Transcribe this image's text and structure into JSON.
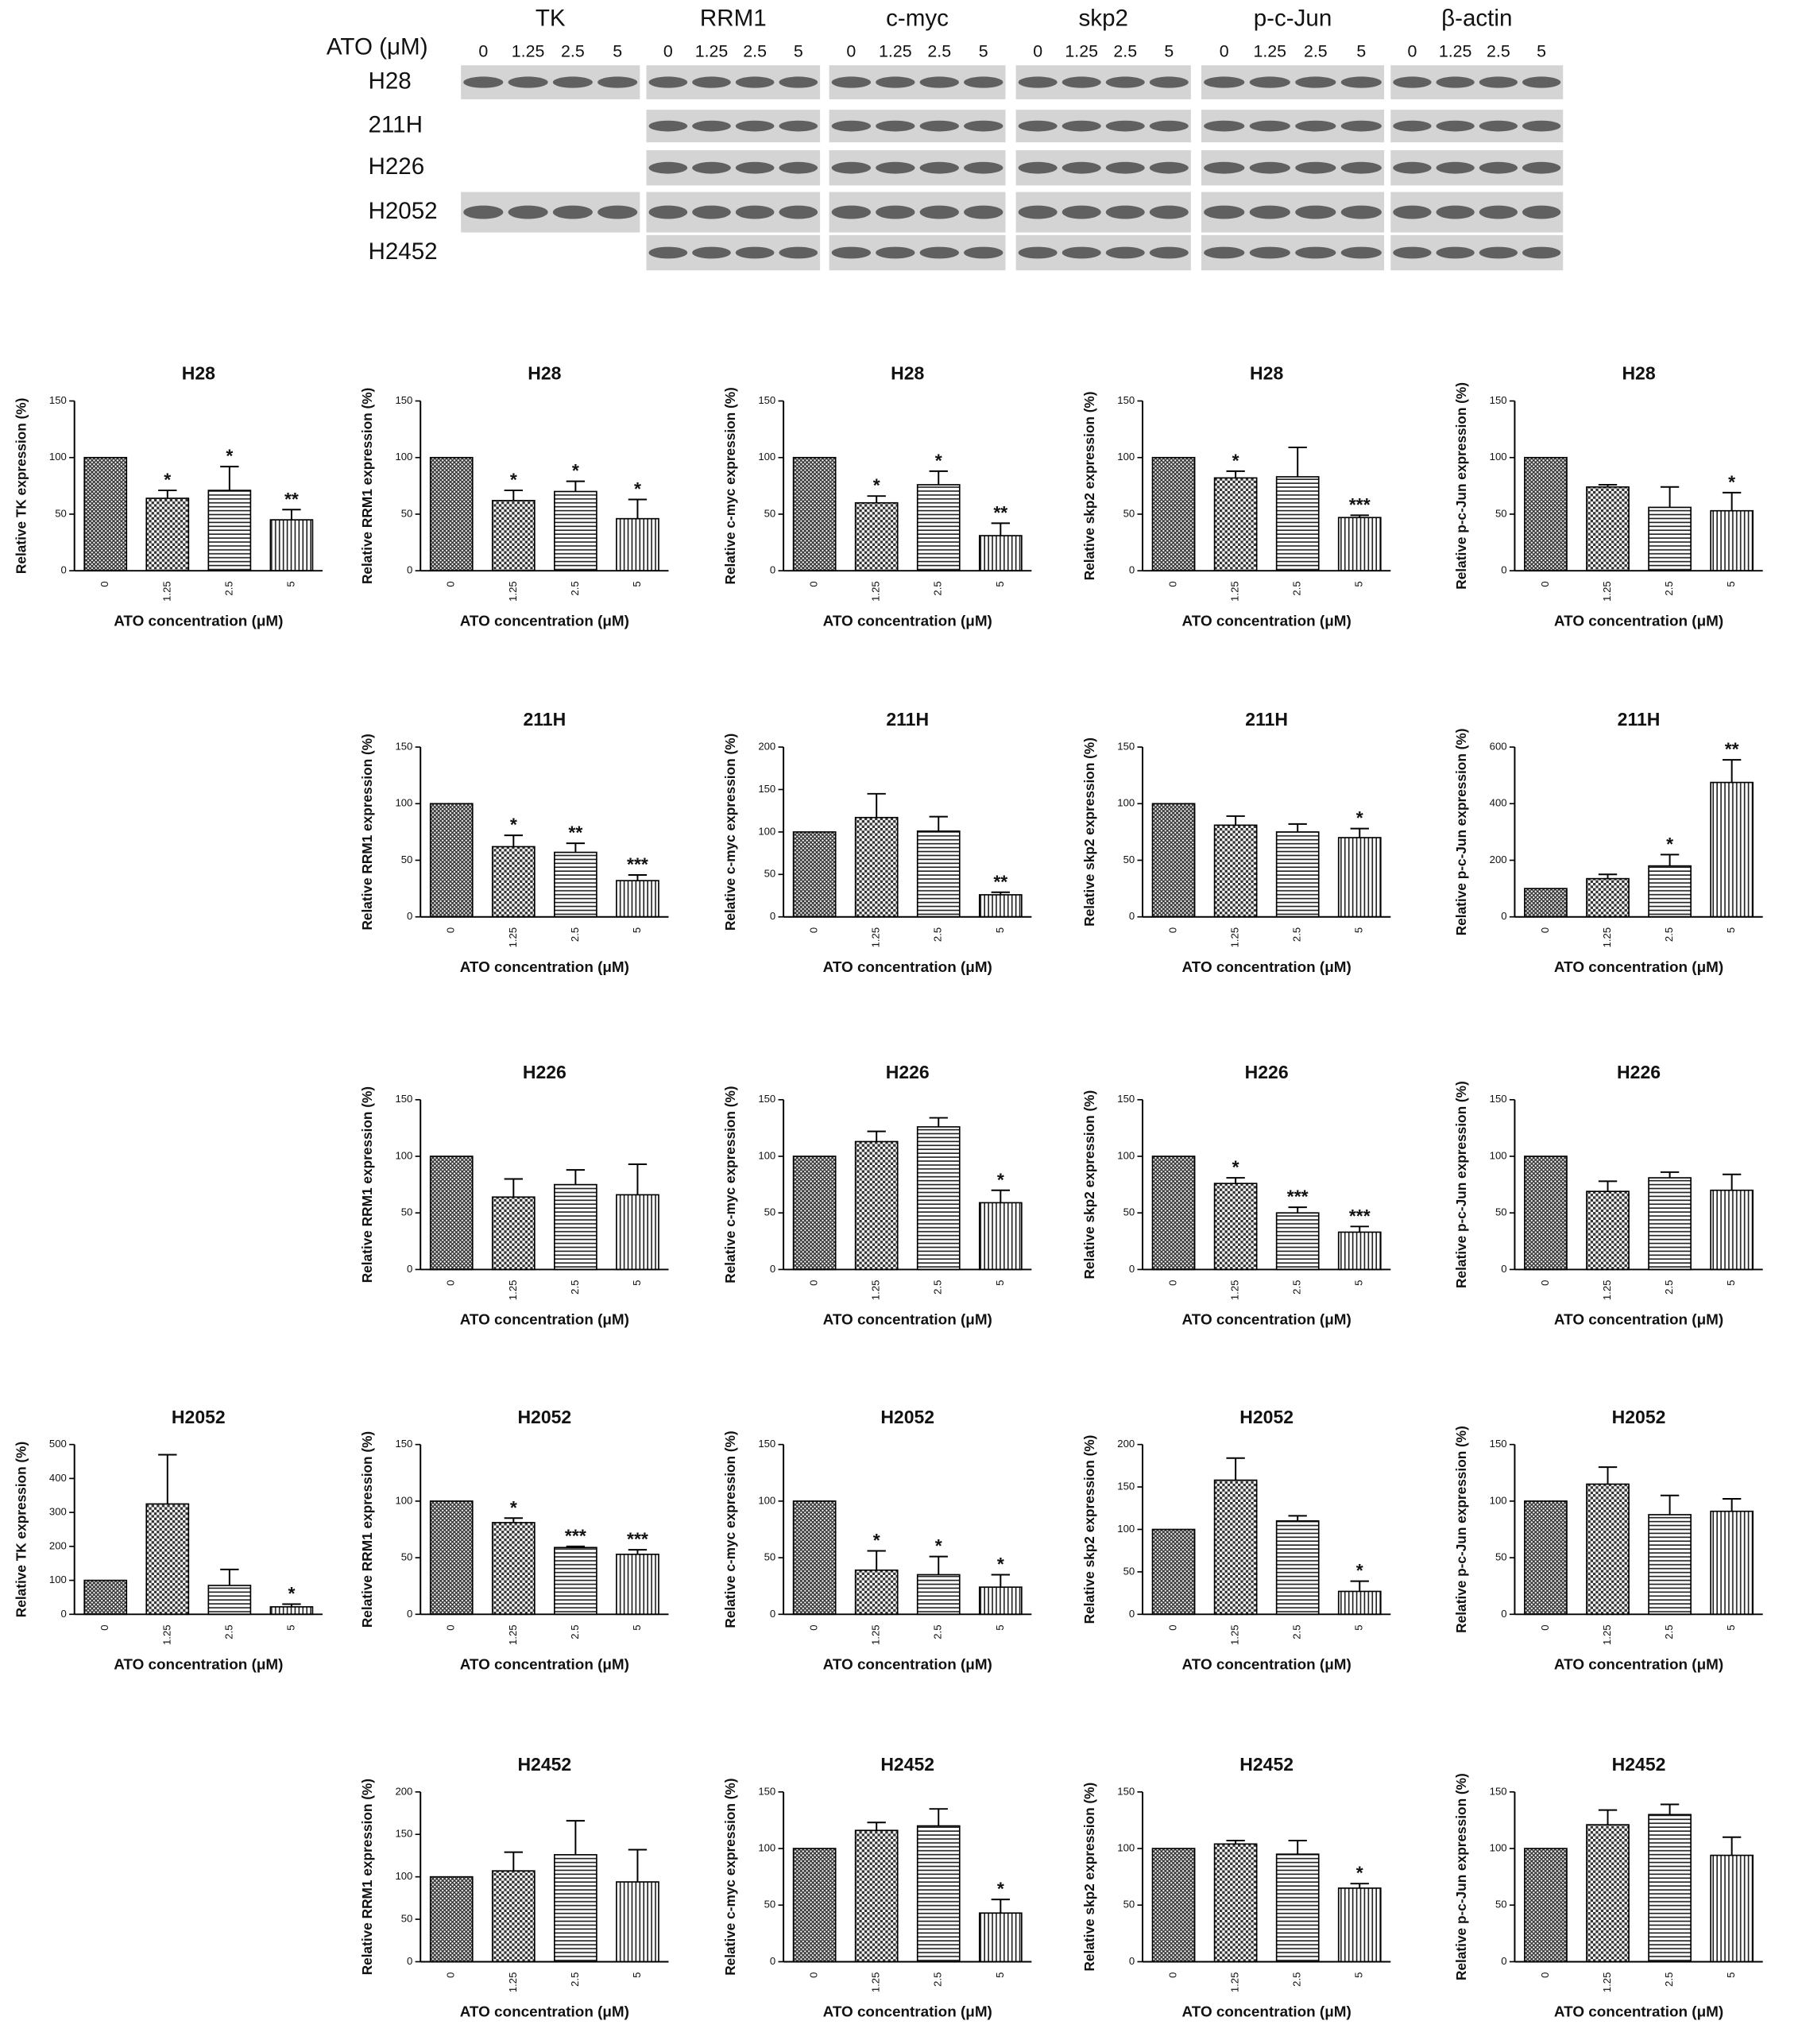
{
  "blot": {
    "label": "ATO (μM)",
    "proteins": [
      "TK",
      "RRM1",
      "c-myc",
      "skp2",
      "p-c-Jun",
      "β-actin"
    ],
    "doses": [
      "0",
      "1.25",
      "2.5",
      "5"
    ],
    "cell_lines": [
      "H28",
      "211H",
      "H226",
      "H2052",
      "H2452"
    ]
  },
  "chart_data": [
    {
      "type": "bar",
      "title": "H28",
      "ylabel": "Relative TK expression (%)",
      "xlabel": "ATO concentration (μM)",
      "categories": [
        "0",
        "1.25",
        "2.5",
        "5"
      ],
      "values": [
        100,
        64,
        71,
        45
      ],
      "errors": [
        null,
        7,
        21,
        9
      ],
      "annotations": [
        null,
        "*",
        "*",
        "**"
      ],
      "ylim": [
        0,
        150
      ],
      "yticks": [
        0,
        50,
        100,
        150
      ],
      "patterns": [
        "crosshatch",
        "checker",
        "horizontal",
        "vertical"
      ]
    },
    {
      "type": "bar",
      "title": "H28",
      "ylabel": "Relative RRM1 expression (%)",
      "xlabel": "ATO concentration (μM)",
      "categories": [
        "0",
        "1.25",
        "2.5",
        "5"
      ],
      "values": [
        100,
        62,
        70,
        46
      ],
      "errors": [
        null,
        9,
        9,
        17
      ],
      "annotations": [
        null,
        "*",
        "*",
        "*"
      ],
      "ylim": [
        0,
        150
      ],
      "yticks": [
        0,
        50,
        100,
        150
      ],
      "patterns": [
        "crosshatch",
        "checker",
        "horizontal",
        "vertical"
      ]
    },
    {
      "type": "bar",
      "title": "H28",
      "ylabel": "Relative c-myc expression (%)",
      "xlabel": "ATO concentration (μM)",
      "categories": [
        "0",
        "1.25",
        "2.5",
        "5"
      ],
      "values": [
        100,
        60,
        76,
        31
      ],
      "errors": [
        null,
        6,
        12,
        11
      ],
      "annotations": [
        null,
        "*",
        "*",
        "**"
      ],
      "ylim": [
        0,
        150
      ],
      "yticks": [
        0,
        50,
        100,
        150
      ],
      "patterns": [
        "crosshatch",
        "checker",
        "horizontal",
        "vertical"
      ]
    },
    {
      "type": "bar",
      "title": "H28",
      "ylabel": "Relative skp2 expression (%)",
      "xlabel": "ATO concentration (μM)",
      "categories": [
        "0",
        "1.25",
        "2.5",
        "5"
      ],
      "values": [
        100,
        82,
        83,
        47
      ],
      "errors": [
        null,
        6,
        26,
        2
      ],
      "annotations": [
        null,
        "*",
        null,
        "***"
      ],
      "ylim": [
        0,
        150
      ],
      "yticks": [
        0,
        50,
        100,
        150
      ],
      "patterns": [
        "crosshatch",
        "checker",
        "horizontal",
        "vertical"
      ]
    },
    {
      "type": "bar",
      "title": "H28",
      "ylabel": "Relative p-c-Jun expression (%)",
      "xlabel": "ATO concentration (μM)",
      "categories": [
        "0",
        "1.25",
        "2.5",
        "5"
      ],
      "values": [
        100,
        74,
        56,
        53
      ],
      "errors": [
        null,
        2,
        18,
        16
      ],
      "annotations": [
        null,
        null,
        null,
        "*"
      ],
      "ylim": [
        0,
        150
      ],
      "yticks": [
        0,
        50,
        100,
        150
      ],
      "patterns": [
        "crosshatch",
        "checker",
        "horizontal",
        "vertical"
      ]
    },
    {
      "type": "bar",
      "title": "211H",
      "ylabel": "Relative RRM1 expression (%)",
      "xlabel": "ATO concentration (μM)",
      "categories": [
        "0",
        "1.25",
        "2.5",
        "5"
      ],
      "values": [
        100,
        62,
        57,
        32
      ],
      "errors": [
        null,
        10,
        8,
        5
      ],
      "annotations": [
        null,
        "*",
        "**",
        "***"
      ],
      "ylim": [
        0,
        150
      ],
      "yticks": [
        0,
        50,
        100,
        150
      ],
      "patterns": [
        "crosshatch",
        "checker",
        "horizontal",
        "vertical"
      ]
    },
    {
      "type": "bar",
      "title": "211H",
      "ylabel": "Relative c-myc expression (%)",
      "xlabel": "ATO concentration (μM)",
      "categories": [
        "0",
        "1.25",
        "2.5",
        "5"
      ],
      "values": [
        100,
        117,
        101,
        26
      ],
      "errors": [
        null,
        28,
        17,
        3
      ],
      "annotations": [
        null,
        null,
        null,
        "**"
      ],
      "ylim": [
        0,
        200
      ],
      "yticks": [
        0,
        50,
        100,
        150,
        200
      ],
      "patterns": [
        "crosshatch",
        "checker",
        "horizontal",
        "vertical"
      ]
    },
    {
      "type": "bar",
      "title": "211H",
      "ylabel": "Relative skp2 expression (%)",
      "xlabel": "ATO concentration (μM)",
      "categories": [
        "0",
        "1.25",
        "2.5",
        "5"
      ],
      "values": [
        100,
        81,
        75,
        70
      ],
      "errors": [
        null,
        8,
        7,
        8
      ],
      "annotations": [
        null,
        null,
        null,
        "*"
      ],
      "ylim": [
        0,
        150
      ],
      "yticks": [
        0,
        50,
        100,
        150
      ],
      "patterns": [
        "crosshatch",
        "checker",
        "horizontal",
        "vertical"
      ]
    },
    {
      "type": "bar",
      "title": "211H",
      "ylabel": "Relative p-c-Jun expression (%)",
      "xlabel": "ATO concentration (μM)",
      "categories": [
        "0",
        "1.25",
        "2.5",
        "5"
      ],
      "values": [
        100,
        135,
        180,
        475
      ],
      "errors": [
        null,
        15,
        40,
        80
      ],
      "annotations": [
        null,
        null,
        "*",
        "**"
      ],
      "ylim": [
        0,
        600
      ],
      "yticks": [
        0,
        200,
        400,
        600
      ],
      "patterns": [
        "crosshatch",
        "checker",
        "horizontal",
        "vertical"
      ]
    },
    {
      "type": "bar",
      "title": "H226",
      "ylabel": "Relative RRM1 expression (%)",
      "xlabel": "ATO concentration (μM)",
      "categories": [
        "0",
        "1.25",
        "2.5",
        "5"
      ],
      "values": [
        100,
        64,
        75,
        66
      ],
      "errors": [
        null,
        16,
        13,
        27
      ],
      "annotations": [
        null,
        null,
        null,
        null
      ],
      "ylim": [
        0,
        150
      ],
      "yticks": [
        0,
        50,
        100,
        150
      ],
      "patterns": [
        "crosshatch",
        "checker",
        "horizontal",
        "vertical"
      ]
    },
    {
      "type": "bar",
      "title": "H226",
      "ylabel": "Relative c-myc expression (%)",
      "xlabel": "ATO concentration (μM)",
      "categories": [
        "0",
        "1.25",
        "2.5",
        "5"
      ],
      "values": [
        100,
        113,
        126,
        59
      ],
      "errors": [
        null,
        9,
        8,
        11
      ],
      "annotations": [
        null,
        null,
        null,
        "*"
      ],
      "ylim": [
        0,
        150
      ],
      "yticks": [
        0,
        50,
        100,
        150
      ],
      "patterns": [
        "crosshatch",
        "checker",
        "horizontal",
        "vertical"
      ]
    },
    {
      "type": "bar",
      "title": "H226",
      "ylabel": "Relative skp2 expression (%)",
      "xlabel": "ATO concentration (μM)",
      "categories": [
        "0",
        "1.25",
        "2.5",
        "5"
      ],
      "values": [
        100,
        76,
        50,
        33
      ],
      "errors": [
        null,
        5,
        5,
        5
      ],
      "annotations": [
        null,
        "*",
        "***",
        "***"
      ],
      "ylim": [
        0,
        150
      ],
      "yticks": [
        0,
        50,
        100,
        150
      ],
      "patterns": [
        "crosshatch",
        "checker",
        "horizontal",
        "vertical"
      ]
    },
    {
      "type": "bar",
      "title": "H226",
      "ylabel": "Relative p-c-Jun expression (%)",
      "xlabel": "ATO concentration (μM)",
      "categories": [
        "0",
        "1.25",
        "2.5",
        "5"
      ],
      "values": [
        100,
        69,
        81,
        70
      ],
      "errors": [
        null,
        9,
        5,
        14
      ],
      "annotations": [
        null,
        null,
        null,
        null
      ],
      "ylim": [
        0,
        150
      ],
      "yticks": [
        0,
        50,
        100,
        150
      ],
      "patterns": [
        "crosshatch",
        "checker",
        "horizontal",
        "vertical"
      ]
    },
    {
      "type": "bar",
      "title": "H2052",
      "ylabel": "Relative TK expression (%)",
      "xlabel": "ATO concentration (μM)",
      "categories": [
        "0",
        "1.25",
        "2.5",
        "5"
      ],
      "values": [
        100,
        325,
        85,
        22
      ],
      "errors": [
        null,
        145,
        47,
        8
      ],
      "annotations": [
        null,
        null,
        null,
        "*"
      ],
      "ylim": [
        0,
        500
      ],
      "yticks": [
        0,
        100,
        200,
        300,
        400,
        500
      ],
      "patterns": [
        "crosshatch",
        "checker",
        "horizontal",
        "vertical"
      ]
    },
    {
      "type": "bar",
      "title": "H2052",
      "ylabel": "Relative RRM1 expression (%)",
      "xlabel": "ATO concentration (μM)",
      "categories": [
        "0",
        "1.25",
        "2.5",
        "5"
      ],
      "values": [
        100,
        81,
        59,
        53
      ],
      "errors": [
        null,
        4,
        1,
        4
      ],
      "annotations": [
        null,
        "*",
        "***",
        "***"
      ],
      "ylim": [
        0,
        150
      ],
      "yticks": [
        0,
        50,
        100,
        150
      ],
      "patterns": [
        "crosshatch",
        "checker",
        "horizontal",
        "vertical"
      ]
    },
    {
      "type": "bar",
      "title": "H2052",
      "ylabel": "Relative c-myc expression (%)",
      "xlabel": "ATO concentration (μM)",
      "categories": [
        "0",
        "1.25",
        "2.5",
        "5"
      ],
      "values": [
        100,
        39,
        35,
        24
      ],
      "errors": [
        null,
        17,
        16,
        11
      ],
      "annotations": [
        null,
        "*",
        "*",
        "*"
      ],
      "ylim": [
        0,
        150
      ],
      "yticks": [
        0,
        50,
        100,
        150
      ],
      "patterns": [
        "crosshatch",
        "checker",
        "horizontal",
        "vertical"
      ]
    },
    {
      "type": "bar",
      "title": "H2052",
      "ylabel": "Relative skp2 expression (%)",
      "xlabel": "ATO concentration (μM)",
      "categories": [
        "0",
        "1.25",
        "2.5",
        "5"
      ],
      "values": [
        100,
        158,
        110,
        27
      ],
      "errors": [
        null,
        26,
        6,
        12
      ],
      "annotations": [
        null,
        null,
        null,
        "*"
      ],
      "ylim": [
        0,
        200
      ],
      "yticks": [
        0,
        50,
        100,
        150,
        200
      ],
      "patterns": [
        "crosshatch",
        "checker",
        "horizontal",
        "vertical"
      ]
    },
    {
      "type": "bar",
      "title": "H2052",
      "ylabel": "Relative p-c-Jun expression (%)",
      "xlabel": "ATO concentration (μM)",
      "categories": [
        "0",
        "1.25",
        "2.5",
        "5"
      ],
      "values": [
        100,
        115,
        88,
        91
      ],
      "errors": [
        null,
        15,
        17,
        11
      ],
      "annotations": [
        null,
        null,
        null,
        null
      ],
      "ylim": [
        0,
        150
      ],
      "yticks": [
        0,
        50,
        100,
        150
      ],
      "patterns": [
        "crosshatch",
        "checker",
        "horizontal",
        "vertical"
      ]
    },
    {
      "type": "bar",
      "title": "H2452",
      "ylabel": "Relative RRM1 expression (%)",
      "xlabel": "ATO concentration (μM)",
      "categories": [
        "0",
        "1.25",
        "2.5",
        "5"
      ],
      "values": [
        100,
        107,
        126,
        94
      ],
      "errors": [
        null,
        22,
        40,
        38
      ],
      "annotations": [
        null,
        null,
        null,
        null
      ],
      "ylim": [
        0,
        200
      ],
      "yticks": [
        0,
        50,
        100,
        150,
        200
      ],
      "patterns": [
        "crosshatch",
        "checker",
        "horizontal",
        "vertical"
      ]
    },
    {
      "type": "bar",
      "title": "H2452",
      "ylabel": "Relative c-myc expression (%)",
      "xlabel": "ATO concentration (μM)",
      "categories": [
        "0",
        "1.25",
        "2.5",
        "5"
      ],
      "values": [
        100,
        116,
        120,
        43
      ],
      "errors": [
        null,
        7,
        15,
        12
      ],
      "annotations": [
        null,
        null,
        null,
        "*"
      ],
      "ylim": [
        0,
        150
      ],
      "yticks": [
        0,
        50,
        100,
        150
      ],
      "patterns": [
        "crosshatch",
        "checker",
        "horizontal",
        "vertical"
      ]
    },
    {
      "type": "bar",
      "title": "H2452",
      "ylabel": "Relative skp2 expression (%)",
      "xlabel": "ATO concentration (μM)",
      "categories": [
        "0",
        "1.25",
        "2.5",
        "5"
      ],
      "values": [
        100,
        104,
        95,
        65
      ],
      "errors": [
        null,
        3,
        12,
        4
      ],
      "annotations": [
        null,
        null,
        null,
        "*"
      ],
      "ylim": [
        0,
        150
      ],
      "yticks": [
        0,
        50,
        100,
        150
      ],
      "patterns": [
        "crosshatch",
        "checker",
        "horizontal",
        "vertical"
      ]
    },
    {
      "type": "bar",
      "title": "H2452",
      "ylabel": "Relative p-c-Jun expression (%)",
      "xlabel": "ATO concentration (μM)",
      "categories": [
        "0",
        "1.25",
        "2.5",
        "5"
      ],
      "values": [
        100,
        121,
        130,
        94
      ],
      "errors": [
        null,
        13,
        9,
        16
      ],
      "annotations": [
        null,
        null,
        null,
        null
      ],
      "ylim": [
        0,
        150
      ],
      "yticks": [
        0,
        50,
        100,
        150
      ],
      "patterns": [
        "crosshatch",
        "checker",
        "horizontal",
        "vertical"
      ]
    }
  ]
}
